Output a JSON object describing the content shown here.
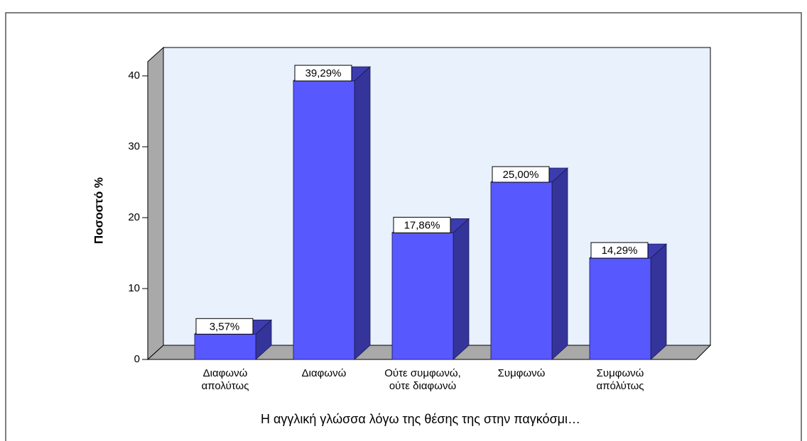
{
  "chart_data": {
    "type": "bar",
    "y_label": "Ποσοστό %",
    "x_label": "Η αγγλική γλώσσα λόγω της θέσης της στην παγκόσμι…",
    "categories": [
      "Διαφωνώ\nαπολύτως",
      "Διαφωνώ",
      "Ούτε συμφωνώ,\nούτε διαφωνώ",
      "Συμφωνώ",
      "Συμφωνώ\nαπόλύτως"
    ],
    "values": [
      3.57,
      39.29,
      17.86,
      25.0,
      14.29
    ],
    "value_labels": [
      "3,57%",
      "39,29%",
      "17,86%",
      "25,00%",
      "14,29%"
    ],
    "color": "#5858ff",
    "ylim": [
      0,
      42
    ],
    "yticks": [
      0,
      10,
      20,
      30,
      40
    ]
  }
}
